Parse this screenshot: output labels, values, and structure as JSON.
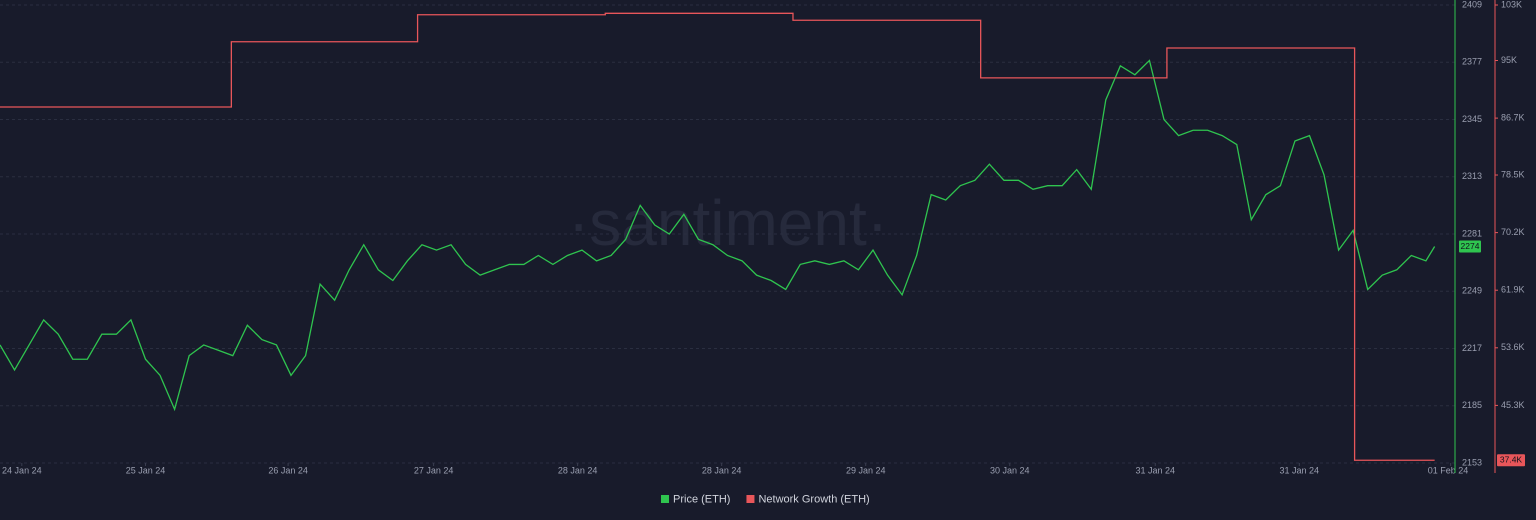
{
  "chart_data": {
    "type": "line",
    "watermark": "·santiment·",
    "xlim": [
      0,
      100
    ],
    "xticks": [
      {
        "value": 1.5,
        "label": "24 Jan 24"
      },
      {
        "value": 10,
        "label": "25 Jan 24"
      },
      {
        "value": 19.8,
        "label": "26 Jan 24"
      },
      {
        "value": 29.8,
        "label": "27 Jan 24"
      },
      {
        "value": 39.7,
        "label": "28 Jan 24"
      },
      {
        "value": 49.6,
        "label": "28 Jan 24"
      },
      {
        "value": 59.5,
        "label": "29 Jan 24"
      },
      {
        "value": 69.4,
        "label": "30 Jan 24"
      },
      {
        "value": 79.4,
        "label": "31 Jan 24"
      },
      {
        "value": 89.3,
        "label": "31 Jan 24"
      },
      {
        "value": 99.7,
        "label": "01 Feb 24"
      }
    ],
    "ylim": [
      2153,
      2409
    ],
    "yticks": [
      2153,
      2185,
      2217,
      2249,
      2281,
      2313,
      2345,
      2377,
      2409
    ],
    "y2lim": [
      37000,
      103000
    ],
    "y2ticks": [
      {
        "value": 45300,
        "label": "45.3K"
      },
      {
        "value": 53600,
        "label": "53.6K"
      },
      {
        "value": 61900,
        "label": "61.9K"
      },
      {
        "value": 70200,
        "label": "70.2K"
      },
      {
        "value": 78500,
        "label": "78.5K"
      },
      {
        "value": 86700,
        "label": "86.7K"
      },
      {
        "value": 95000,
        "label": "95K"
      },
      {
        "value": 103000,
        "label": "103K"
      }
    ],
    "grid": true,
    "series": [
      {
        "name": "Price (ETH)",
        "color": "#2fc44f",
        "current_label": "2274",
        "x": [
          0,
          1,
          2,
          3,
          4,
          5,
          6,
          7,
          8,
          9,
          10,
          11,
          12,
          13,
          14,
          15,
          16,
          17,
          18,
          19,
          20,
          21,
          22,
          23,
          24,
          25,
          26,
          27,
          28,
          29,
          30,
          31,
          32,
          33,
          34,
          35,
          36,
          37,
          38,
          39,
          40,
          41,
          42,
          43,
          44,
          45,
          46,
          47,
          48,
          49,
          50,
          51,
          52,
          53,
          54,
          55,
          56,
          57,
          58,
          59,
          60,
          61,
          62,
          63,
          64,
          65,
          66,
          67,
          68,
          69,
          70,
          71,
          72,
          73,
          74,
          75,
          76,
          77,
          78,
          79,
          80,
          81,
          82,
          83,
          84,
          85,
          86,
          87,
          88,
          89,
          90,
          91,
          92,
          93,
          94,
          95,
          96,
          97,
          98,
          98.6
        ],
        "values": [
          2219,
          2205,
          2219,
          2233,
          2225,
          2211,
          2211,
          2225,
          2225,
          2233,
          2211,
          2202,
          2183,
          2213,
          2219,
          2216,
          2213,
          2230,
          2222,
          2219,
          2202,
          2213,
          2253,
          2244,
          2261,
          2275,
          2261,
          2255,
          2266,
          2275,
          2272,
          2275,
          2264,
          2258,
          2261,
          2264,
          2264,
          2269,
          2264,
          2269,
          2272,
          2266,
          2269,
          2278,
          2297,
          2286,
          2281,
          2292,
          2278,
          2275,
          2269,
          2266,
          2258,
          2255,
          2250,
          2264,
          2266,
          2264,
          2266,
          2261,
          2272,
          2258,
          2247,
          2269,
          2303,
          2300,
          2308,
          2311,
          2320,
          2311,
          2311,
          2306,
          2308,
          2308,
          2317,
          2306,
          2356,
          2375,
          2370,
          2378,
          2345,
          2336,
          2339,
          2339,
          2336,
          2331,
          2289,
          2303,
          2308,
          2333,
          2336,
          2314,
          2272,
          2283,
          2250,
          2258,
          2261,
          2269,
          2266,
          2274
        ]
      },
      {
        "name": "Network Growth (ETH)",
        "color": "#e8565a",
        "axis": "y2",
        "step": "post",
        "current_label": "37.4K",
        "x": [
          0,
          15.9,
          28.7,
          41.6,
          54.5,
          67.4,
          80.2,
          93.1,
          98.6
        ],
        "values": [
          88300,
          97700,
          101600,
          101800,
          100800,
          92500,
          96800,
          37400,
          37400
        ]
      }
    ]
  }
}
